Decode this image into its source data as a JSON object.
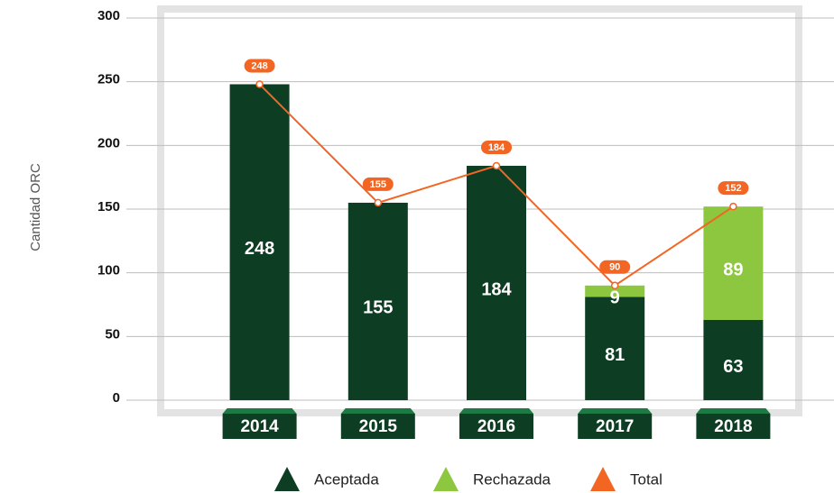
{
  "chart_data": {
    "type": "bar",
    "stacked": true,
    "y_label": "Cantidad ORC",
    "categories": [
      "2014",
      "2015",
      "2016",
      "2017",
      "2018"
    ],
    "series": [
      {
        "name": "Aceptada",
        "color": "#0d3d22",
        "values": [
          248,
          155,
          184,
          81,
          63
        ]
      },
      {
        "name": "Rechazada",
        "color": "#8dc63f",
        "values": [
          null,
          null,
          null,
          9,
          89
        ]
      },
      {
        "name": "Total",
        "color": "#f26522",
        "type": "line",
        "values": [
          248,
          155,
          184,
          90,
          152
        ]
      }
    ],
    "ylim": [
      0,
      300
    ],
    "yticks": [
      0,
      50,
      100,
      150,
      200,
      250,
      300
    ],
    "grid": true,
    "legend": "bottom"
  }
}
